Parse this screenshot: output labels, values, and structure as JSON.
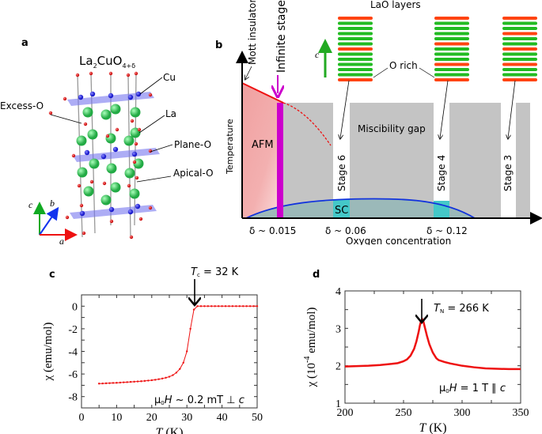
{
  "panel_a": {
    "label": "a",
    "formula": {
      "main": "La",
      "sub1": "2",
      "mid": "CuO",
      "sub2": "4+δ"
    },
    "annotations": [
      "Cu",
      "Excess-O",
      "La",
      "Plane-O",
      "Apical-O"
    ],
    "axes": {
      "a": "a",
      "b": "b",
      "c": "c"
    },
    "colors": {
      "cu": "#1a1acc",
      "la": "#22aa44",
      "o": "#cc1111",
      "plane": "#7777ee",
      "axis_a": "#ee1111",
      "axis_b": "#1133ee",
      "axis_c": "#11aa22"
    }
  },
  "panel_b": {
    "label": "b",
    "top_label": "LaO layers",
    "c_axis_label": "c",
    "o_rich_label": "O rich",
    "mott_label": "Mott insulator",
    "infinite_stage_label": "Infinite stage",
    "y_axis_label": "Temperature",
    "x_axis_label": "Oxygen concentration",
    "afm_label": "AFM",
    "sc_label": "SC",
    "miscibility_label": "Miscibility gap",
    "stages": [
      "Stage 6",
      "Stage 4",
      "Stage 3"
    ],
    "x_ticks": [
      "δ ~ 0.015",
      "δ ~ 0.06",
      "δ ~ 0.12"
    ],
    "layer_stacks": [
      [
        "red",
        "green",
        "green",
        "green",
        "green",
        "green",
        "red",
        "green",
        "green",
        "green",
        "green",
        "green",
        "red"
      ],
      [
        "red",
        "green",
        "green",
        "green",
        "green",
        "red",
        "green",
        "green",
        "green",
        "red",
        "green",
        "green",
        "red"
      ],
      [
        "red",
        "green",
        "green",
        "red",
        "green",
        "green",
        "red",
        "green",
        "green",
        "red",
        "green",
        "green",
        "red"
      ]
    ],
    "colors": {
      "afm": "#f0a8a8",
      "infinite": "#cc00cc",
      "gap": "#c4c4c4",
      "sc_fill": "#99b8b8",
      "sc_stage": "#44c8c8",
      "sc_line": "#1133dd",
      "neel": "#ee1111",
      "layer_red": "#ff4411",
      "layer_green": "#22bb22"
    }
  },
  "chart_data": [
    {
      "panel": "c",
      "type": "scatter",
      "title": "",
      "annotation": "T_c = 32 K",
      "annotation_parts": {
        "t": "T",
        "sub": "c",
        "rest": " = 32 K"
      },
      "field_label": {
        "mu": "μ",
        "sub": "0",
        "h": "H",
        "rest": " ~ 0.2 mT ⊥ ",
        "c": "c"
      },
      "xlabel": "T (K)",
      "xlabel_parts": {
        "t": "T",
        "unit": " (K)"
      },
      "ylabel": "χ (emu/mol)",
      "xlim": [
        0,
        50
      ],
      "ylim": [
        -9,
        1
      ],
      "xticks": [
        0,
        10,
        20,
        30,
        40,
        50
      ],
      "yticks": [
        0,
        -2,
        -4,
        -6,
        -8
      ],
      "color": "#ee1111",
      "series": [
        {
          "name": "chi",
          "x": [
            5,
            6,
            7,
            8,
            9,
            10,
            11,
            12,
            13,
            14,
            15,
            16,
            17,
            18,
            19,
            20,
            21,
            22,
            23,
            24,
            25,
            26,
            27,
            28,
            29,
            30,
            31,
            32,
            33,
            34,
            35,
            36,
            37,
            38,
            39,
            40,
            41,
            42,
            43,
            44,
            45,
            46,
            47,
            48,
            49,
            50
          ],
          "y": [
            -6.85,
            -6.84,
            -6.82,
            -6.81,
            -6.79,
            -6.78,
            -6.76,
            -6.74,
            -6.72,
            -6.7,
            -6.68,
            -6.66,
            -6.64,
            -6.61,
            -6.58,
            -6.55,
            -6.51,
            -6.46,
            -6.4,
            -6.33,
            -6.24,
            -6.1,
            -5.88,
            -5.55,
            -5.0,
            -4.0,
            -2.0,
            -0.3,
            0,
            0,
            0,
            0,
            0,
            0,
            0,
            0,
            0,
            0,
            0,
            0,
            0,
            0,
            0,
            0,
            0,
            0
          ]
        }
      ]
    },
    {
      "panel": "d",
      "type": "line",
      "title": "",
      "annotation": "T_N = 266 K",
      "annotation_parts": {
        "t": "T",
        "sub": "N",
        "rest": " = 266 K"
      },
      "field_label": {
        "mu": "μ",
        "sub": "0",
        "h": "H",
        "rest": " = 1 T ∥ ",
        "c": "c"
      },
      "xlabel": "T (K)",
      "xlabel_parts": {
        "t": "T",
        "unit": " (K)"
      },
      "ylabel": "χ (10⁻⁴ emu/mol)",
      "ylabel_parts": {
        "pre": "χ (10",
        "sup": "-4",
        "post": " emu/mol)"
      },
      "xlim": [
        200,
        350
      ],
      "ylim": [
        1,
        4
      ],
      "xticks": [
        200,
        250,
        300,
        350
      ],
      "yticks": [
        1,
        2,
        3,
        4
      ],
      "color": "#ee1111",
      "series": [
        {
          "name": "chi",
          "x": [
            200,
            210,
            220,
            230,
            240,
            245,
            250,
            253,
            256,
            259,
            261,
            263,
            264,
            265,
            266,
            267,
            268,
            270,
            272,
            275,
            278,
            280,
            285,
            290,
            300,
            310,
            320,
            330,
            340,
            350
          ],
          "y": [
            1.98,
            1.99,
            2.0,
            2.02,
            2.05,
            2.07,
            2.12,
            2.17,
            2.27,
            2.45,
            2.65,
            2.92,
            3.08,
            3.2,
            3.24,
            3.18,
            3.05,
            2.8,
            2.58,
            2.35,
            2.2,
            2.15,
            2.1,
            2.06,
            2.0,
            1.96,
            1.93,
            1.92,
            1.91,
            1.91
          ]
        }
      ]
    }
  ]
}
